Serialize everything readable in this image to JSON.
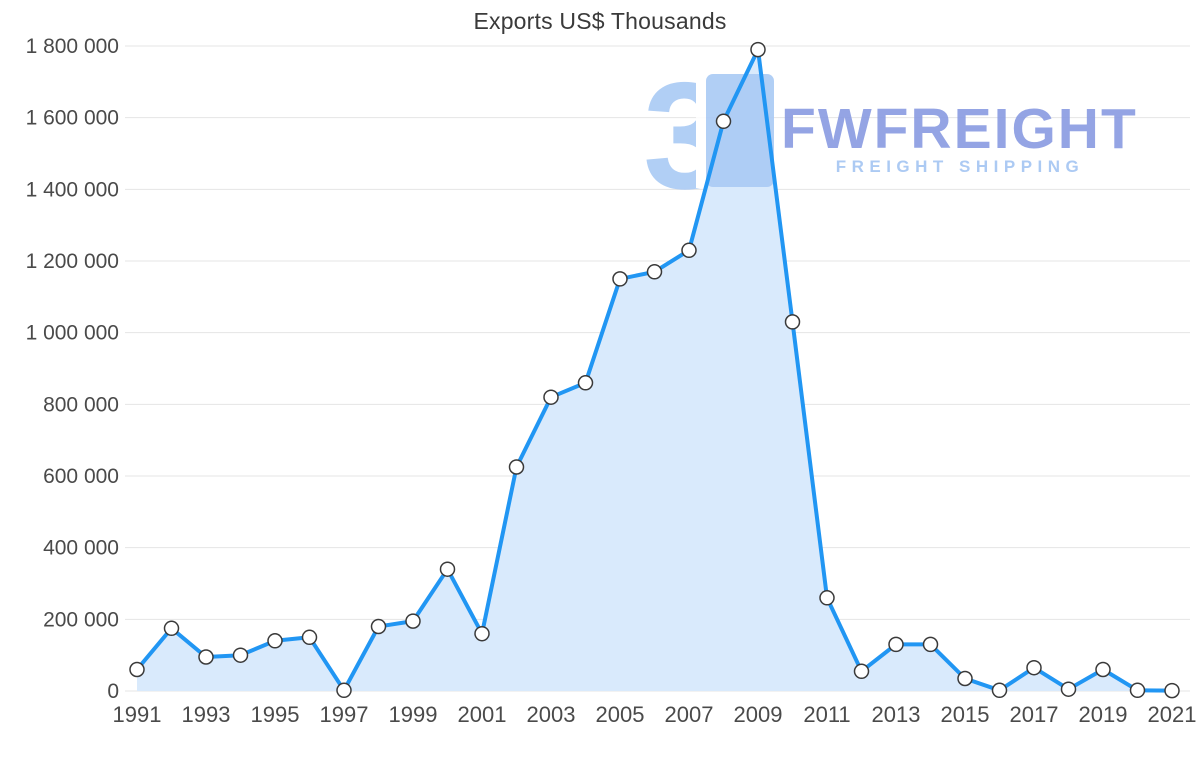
{
  "page": {
    "title": "Exports US$ Thousands"
  },
  "watermark": {
    "logo_glyph": "3",
    "brand": "FWFREIGHT",
    "tagline": "FREIGHT SHIPPING"
  },
  "colors": {
    "line": "#2196f3",
    "area_fill": "#d9eafc",
    "marker_fill": "#ffffff",
    "marker_stroke": "#3a3a3a",
    "grid": "#e4e4e4",
    "axis_text": "#4a4a4a",
    "title_text": "#3a3a3a",
    "watermark_logo": "#abcbf5",
    "watermark_brand": "#8c9de2",
    "watermark_tagline": "#a6c6f3"
  },
  "chart_data": {
    "type": "area",
    "title": "Exports US$ Thousands",
    "xlabel": "",
    "ylabel": "",
    "x": [
      1991,
      1992,
      1993,
      1994,
      1995,
      1996,
      1997,
      1998,
      1999,
      2000,
      2001,
      2002,
      2003,
      2004,
      2005,
      2006,
      2007,
      2008,
      2009,
      2010,
      2011,
      2012,
      2013,
      2014,
      2015,
      2016,
      2017,
      2018,
      2019,
      2020,
      2021
    ],
    "series": [
      {
        "name": "Exports US$ Thousands",
        "values": [
          60000,
          175000,
          95000,
          100000,
          140000,
          150000,
          2000,
          180000,
          195000,
          340000,
          160000,
          625000,
          820000,
          860000,
          1150000,
          1170000,
          1230000,
          1590000,
          1790000,
          1030000,
          260000,
          55000,
          130000,
          130000,
          35000,
          2000,
          65000,
          5000,
          60000,
          2000,
          1000
        ]
      }
    ],
    "ylim": [
      0,
      1800000
    ],
    "ytick_interval": 200000,
    "ytick_labels": [
      "0",
      "200 000",
      "400 000",
      "600 000",
      "800 000",
      "1 000 000",
      "1 200 000",
      "1 400 000",
      "1 600 000",
      "1 800 000"
    ],
    "xtick_interval": 2,
    "xtick_labels": [
      "1991",
      "1993",
      "1995",
      "1997",
      "1999",
      "2001",
      "2003",
      "2005",
      "2007",
      "2009",
      "2011",
      "2013",
      "2015",
      "2017",
      "2019",
      "2021"
    ],
    "grid": true,
    "legend": false,
    "marker": "circle-white"
  }
}
